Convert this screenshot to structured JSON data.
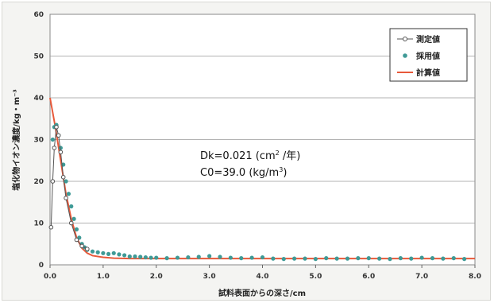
{
  "chart_data": {
    "type": "line",
    "title": "",
    "xlabel": "試料表面からの深さ/cm",
    "ylabel": "塩化物イオン濃度/kg・m⁻³",
    "xlim": [
      0,
      8
    ],
    "ylim": [
      0,
      60
    ],
    "x_ticks": [
      "0.0",
      "1.0",
      "2.0",
      "3.0",
      "4.0",
      "5.0",
      "6.0",
      "7.0",
      "8.0"
    ],
    "y_ticks": [
      "0",
      "10",
      "20",
      "30",
      "40",
      "50",
      "60"
    ],
    "grid": true,
    "legend_position": "top-right",
    "annotations": {
      "line1": {
        "prefix": "Dk=0.021 (cm",
        "sup": "2",
        "suffix": " /年)"
      },
      "line2": {
        "prefix": "C0=39.0 (kg/m",
        "sup": "3",
        "suffix": ")"
      }
    },
    "series": [
      {
        "name": "測定値",
        "color": "#555555",
        "style": "line-open-marker",
        "x": [
          0.02,
          0.05,
          0.08,
          0.12,
          0.16,
          0.2,
          0.25,
          0.3,
          0.4,
          0.5,
          0.6,
          0.7
        ],
        "y": [
          9,
          20,
          28,
          33,
          31,
          27,
          21,
          16,
          10,
          6,
          4.5,
          3.8
        ]
      },
      {
        "name": "採用値",
        "color": "#3f9a96",
        "style": "points",
        "x": [
          0.05,
          0.08,
          0.12,
          0.16,
          0.2,
          0.25,
          0.3,
          0.35,
          0.4,
          0.45,
          0.5,
          0.55,
          0.6,
          0.65,
          0.7,
          0.8,
          0.9,
          1.0,
          1.1,
          1.2,
          1.3,
          1.4,
          1.5,
          1.6,
          1.7,
          1.8,
          1.9,
          2.0,
          2.2,
          2.4,
          2.6,
          2.8,
          3.0,
          3.2,
          3.4,
          3.6,
          3.8,
          4.0,
          4.2,
          4.4,
          4.6,
          4.8,
          5.0,
          5.2,
          5.4,
          5.6,
          5.8,
          6.0,
          6.2,
          6.4,
          6.6,
          6.8,
          7.0,
          7.2,
          7.4,
          7.6,
          7.8
        ],
        "y": [
          30,
          33,
          33.5,
          31,
          28,
          24,
          20,
          17,
          14,
          11,
          8.5,
          6.5,
          5,
          4.2,
          3.6,
          3.2,
          3,
          2.8,
          2.6,
          2.8,
          2.5,
          2.3,
          2,
          2,
          1.9,
          1.8,
          1.7,
          1.7,
          1.6,
          1.7,
          1.8,
          1.9,
          2.1,
          1.9,
          1.7,
          1.6,
          1.7,
          1.8,
          1.5,
          1.4,
          1.5,
          1.5,
          1.4,
          1.6,
          1.5,
          1.5,
          1.6,
          1.6,
          1.5,
          1.4,
          1.6,
          1.5,
          1.7,
          1.6,
          1.5,
          1.6,
          1.4
        ]
      },
      {
        "name": "計算値",
        "color": "#e8593a",
        "style": "line",
        "x": [
          0,
          0.1,
          0.2,
          0.3,
          0.4,
          0.5,
          0.6,
          0.7,
          0.8,
          1.0,
          1.2,
          1.5,
          2.0,
          3.0,
          4.0,
          5.0,
          6.0,
          7.0,
          8.0
        ],
        "y": [
          40,
          33,
          25,
          17,
          11,
          6.5,
          4,
          2.8,
          2.2,
          1.8,
          1.6,
          1.5,
          1.5,
          1.5,
          1.5,
          1.5,
          1.5,
          1.5,
          1.5
        ]
      }
    ]
  }
}
